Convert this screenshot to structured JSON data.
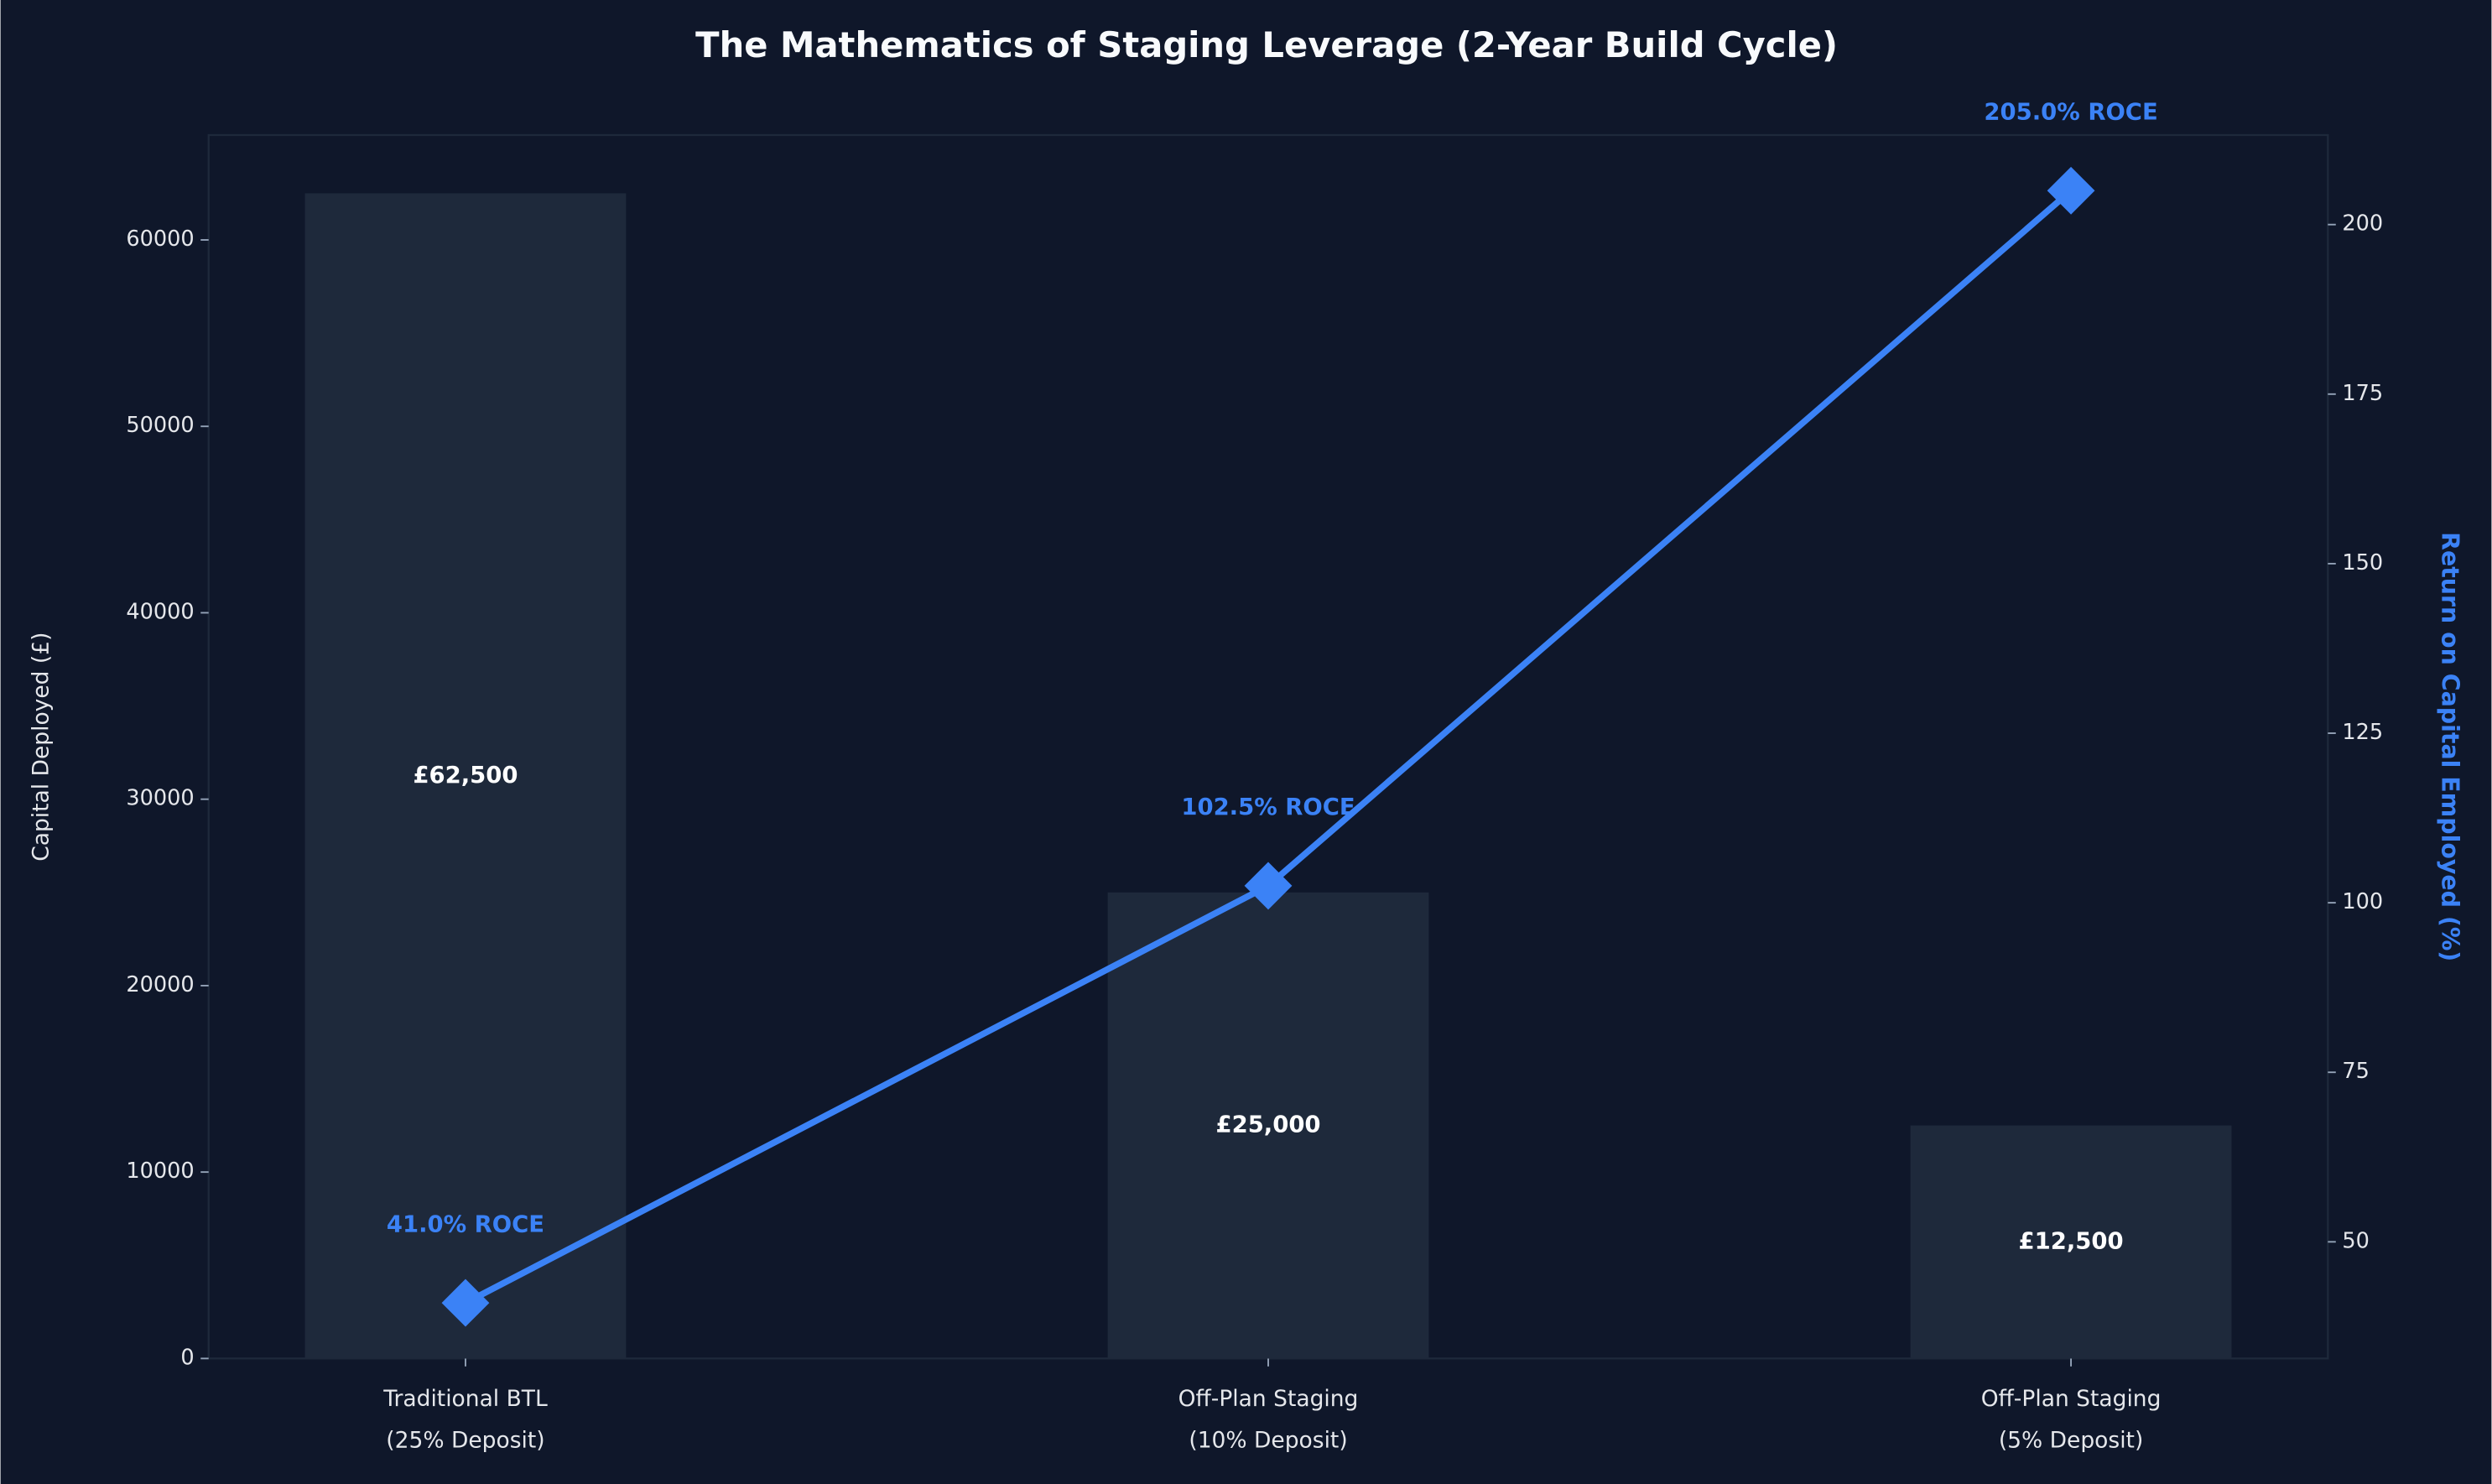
{
  "chart_data": {
    "type": "combo",
    "title": "The Mathematics of Staging Leverage (2-Year Build Cycle)",
    "categories": [
      [
        "Traditional BTL",
        "(25% Deposit)"
      ],
      [
        "Off-Plan Staging",
        "(10% Deposit)"
      ],
      [
        "Off-Plan Staging",
        "(5% Deposit)"
      ]
    ],
    "series": [
      {
        "type": "bar",
        "color": "#1e293b",
        "values": [
          62500,
          25000,
          12500
        ],
        "value_labels": [
          "£62,500",
          "£25,000",
          "£12,500"
        ]
      },
      {
        "type": "line",
        "axis": "y2",
        "color": "#3b82f6",
        "values": [
          41.0,
          102.5,
          205.0
        ],
        "value_labels": [
          "41.0% ROCE",
          "102.5% ROCE",
          "205.0% ROCE"
        ]
      }
    ],
    "ylabel": "Capital Deployed (£)",
    "y2label": "Return on Capital Employed (%)",
    "ylim": [
      0,
      65625
    ],
    "yticks": [
      0,
      10000,
      20000,
      30000,
      40000,
      50000,
      60000
    ],
    "y2lim": [
      32.8,
      213.2
    ],
    "y2ticks": [
      50,
      75,
      100,
      125,
      150,
      175,
      200
    ],
    "background": "#0f172a"
  }
}
